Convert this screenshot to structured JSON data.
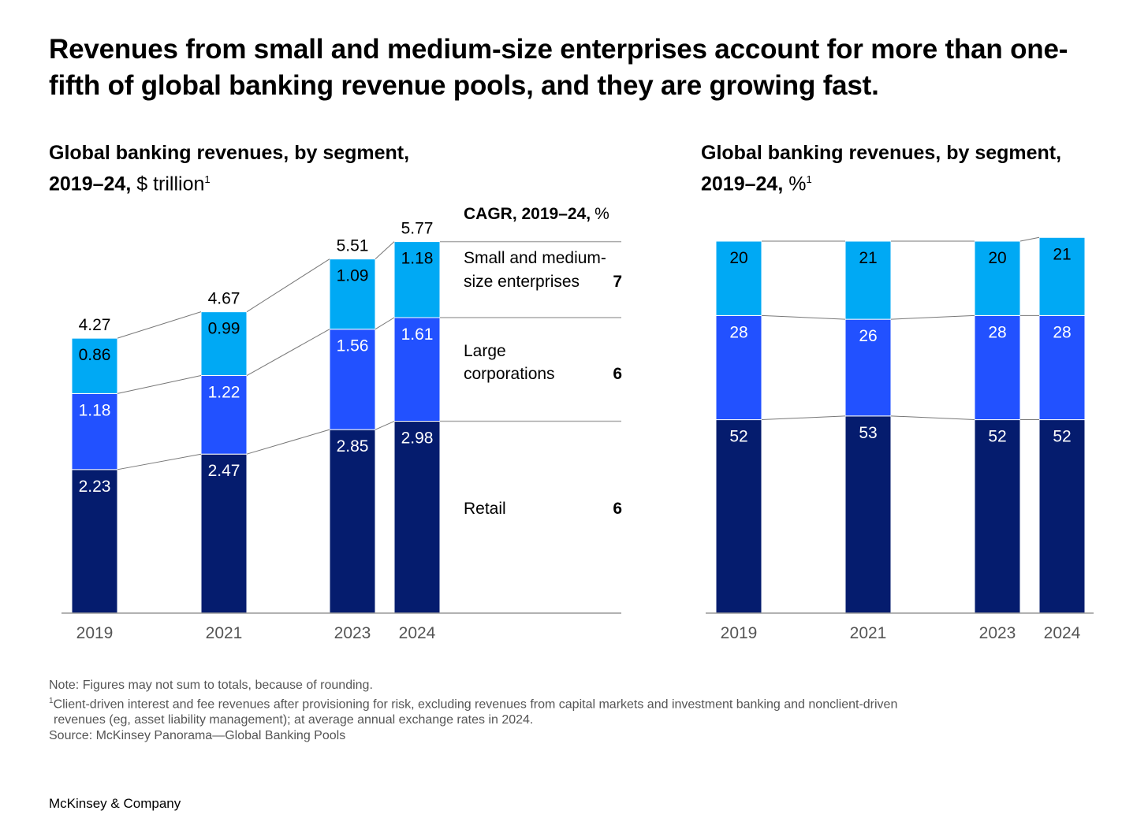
{
  "title": "Revenues from small and medium-size enterprises account for more than one-fifth of global banking revenue pools, and they are growing fast.",
  "colors": {
    "sme": "#00A9F4",
    "large": "#2251FF",
    "retail": "#051C6E",
    "axis": "#999999",
    "connector": "#777777"
  },
  "chart_data": [
    {
      "type": "bar",
      "stacked": true,
      "title": "Global banking revenues, by segment,",
      "title_line2_bold": "2019–24,",
      "title_unit": "$ trillion",
      "title_footnote": "1",
      "categories": [
        "2019",
        "2021",
        "2023",
        "2024"
      ],
      "series": [
        {
          "name": "Retail",
          "values": [
            2.23,
            2.47,
            2.85,
            2.98
          ],
          "labels": [
            "2.23",
            "2.47",
            "2.85",
            "2.98"
          ],
          "cagr": "6"
        },
        {
          "name": "Large corporations",
          "values": [
            1.18,
            1.22,
            1.56,
            1.61
          ],
          "labels": [
            "1.18",
            "1.22",
            "1.56",
            "1.61"
          ],
          "cagr": "6"
        },
        {
          "name": "Small and medium-size enterprises",
          "values": [
            0.86,
            0.99,
            1.09,
            1.18
          ],
          "labels": [
            "0.86",
            "0.99",
            "1.09",
            "1.18"
          ],
          "cagr": "7"
        }
      ],
      "totals": [
        "4.27",
        "4.67",
        "5.51",
        "5.77"
      ],
      "legend": {
        "header_bold": "CAGR, 2019–24,",
        "header_unit": "%",
        "items": [
          {
            "line1": "Small and medium-",
            "line2": "size enterprises",
            "value": "7"
          },
          {
            "line1": "Large",
            "line2": "corporations",
            "value": "6"
          },
          {
            "line1": "Retail",
            "line2": "",
            "value": "6"
          }
        ]
      },
      "ylim": [
        0,
        5.77
      ]
    },
    {
      "type": "bar",
      "stacked": true,
      "title": "Global banking revenues, by segment,",
      "title_line2_bold": "2019–24,",
      "title_unit": "%",
      "title_footnote": "1",
      "categories": [
        "2019",
        "2021",
        "2023",
        "2024"
      ],
      "series": [
        {
          "name": "Retail",
          "values": [
            52,
            53,
            52,
            52
          ],
          "labels": [
            "52",
            "53",
            "52",
            "52"
          ]
        },
        {
          "name": "Large corporations",
          "values": [
            28,
            26,
            28,
            28
          ],
          "labels": [
            "28",
            "26",
            "28",
            "28"
          ]
        },
        {
          "name": "Small and medium-size enterprises",
          "values": [
            20,
            21,
            20,
            21
          ],
          "labels": [
            "20",
            "21",
            "20",
            "21"
          ]
        }
      ],
      "ylim": [
        0,
        100
      ]
    }
  ],
  "notes": {
    "note": "Note: Figures may not sum to totals, because of rounding.",
    "footnote_mark": "1",
    "footnote_line1": "Client-driven interest and fee revenues after provisioning for risk, excluding revenues from capital markets and investment banking and nonclient-driven",
    "footnote_line2": "revenues (eg, asset liability management); at average annual exchange rates in 2024.",
    "source": "Source: McKinsey Panorama—Global Banking Pools"
  },
  "brand": "McKinsey & Company"
}
